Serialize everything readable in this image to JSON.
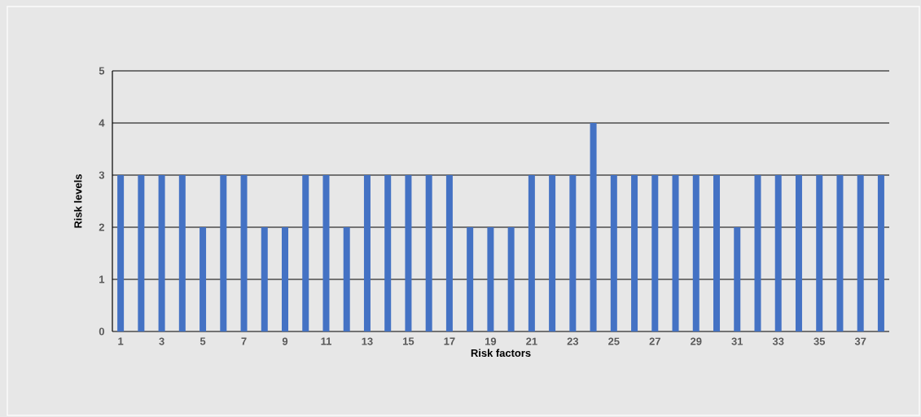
{
  "chart_data": {
    "type": "bar",
    "xlabel": "Risk factors",
    "ylabel": "Risk levels",
    "categories": [
      "1",
      null,
      "3",
      null,
      "5",
      null,
      "7",
      null,
      "9",
      null,
      "11",
      null,
      "13",
      null,
      "15",
      null,
      "17",
      null,
      "19",
      null,
      "21",
      null,
      "23",
      null,
      "25",
      null,
      "27",
      null,
      "29",
      null,
      "31",
      null,
      "33",
      null,
      "35",
      null,
      "37",
      null
    ],
    "values": [
      3,
      3,
      3,
      3,
      2,
      3,
      3,
      2,
      2,
      3,
      3,
      2,
      3,
      3,
      3,
      3,
      3,
      2,
      2,
      2,
      3,
      3,
      3,
      4,
      3,
      3,
      3,
      3,
      3,
      3,
      2,
      3,
      3,
      3,
      3,
      3,
      3,
      3
    ],
    "color": "#4472c4",
    "ylim": [
      0,
      5
    ],
    "yticks": [
      0,
      1,
      2,
      3,
      4,
      5
    ],
    "grid": "y"
  }
}
